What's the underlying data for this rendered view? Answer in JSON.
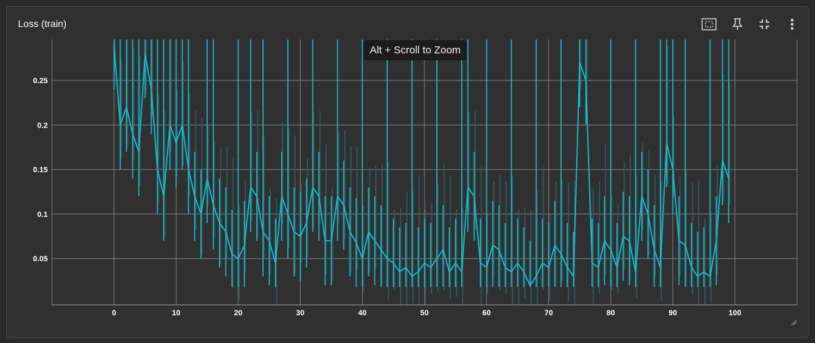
{
  "card": {
    "title": "Loss (train)"
  },
  "toolbar": {
    "items": [
      {
        "name": "fit-domain-icon"
      },
      {
        "name": "pin-icon"
      },
      {
        "name": "collapse-icon"
      },
      {
        "name": "more-vertical-icon"
      }
    ]
  },
  "tooltip": "Alt + Scroll to Zoom",
  "colors": {
    "smoothed": "#1ab8cc",
    "raw": "#2a5f66",
    "grid": "#7a7a7a",
    "text": "#ffffff"
  },
  "chart_data": {
    "type": "line",
    "title": "Loss (train)",
    "xlabel": "",
    "ylabel": "",
    "xlim": [
      -10,
      110
    ],
    "ylim": [
      -0.002,
      0.296
    ],
    "x_ticks": [
      0,
      10,
      20,
      30,
      40,
      50,
      60,
      70,
      80,
      90,
      100
    ],
    "y_ticks": [
      0.05,
      0.1,
      0.15,
      0.2,
      0.25
    ],
    "grid": true,
    "legend": "none",
    "series": [
      {
        "x": [
          0,
          1,
          2,
          3,
          4,
          5,
          6,
          7,
          8,
          9,
          10,
          11,
          12,
          13,
          14,
          15,
          16,
          17,
          18,
          19,
          20,
          21,
          22,
          23,
          24,
          25,
          26,
          27,
          28,
          29,
          30,
          31,
          32,
          33,
          34,
          35,
          36,
          37,
          38,
          39,
          40,
          41,
          42,
          43,
          44,
          45,
          46,
          47,
          48,
          49,
          50,
          51,
          52,
          53,
          54,
          55,
          56,
          57,
          58,
          59,
          60,
          61,
          62,
          63,
          64,
          65,
          66,
          67,
          68,
          69,
          70,
          71,
          72,
          73,
          74,
          75,
          76,
          77,
          78,
          79,
          80,
          81,
          82,
          83,
          84,
          85,
          86,
          87,
          88,
          89,
          90,
          91,
          92,
          93,
          94,
          95,
          96,
          97,
          98,
          99
        ],
        "y": [
          0.29,
          0.2,
          0.22,
          0.19,
          0.17,
          0.28,
          0.24,
          0.15,
          0.12,
          0.2,
          0.18,
          0.2,
          0.15,
          0.12,
          0.1,
          0.14,
          0.11,
          0.09,
          0.08,
          0.055,
          0.05,
          0.065,
          0.13,
          0.12,
          0.08,
          0.07,
          0.045,
          0.12,
          0.1,
          0.08,
          0.075,
          0.09,
          0.13,
          0.12,
          0.07,
          0.07,
          0.12,
          0.11,
          0.08,
          0.068,
          0.05,
          0.08,
          0.07,
          0.06,
          0.05,
          0.045,
          0.035,
          0.04,
          0.03,
          0.035,
          0.045,
          0.04,
          0.05,
          0.06,
          0.035,
          0.045,
          0.035,
          0.13,
          0.12,
          0.045,
          0.04,
          0.065,
          0.06,
          0.04,
          0.035,
          0.045,
          0.035,
          0.02,
          0.03,
          0.045,
          0.04,
          0.065,
          0.055,
          0.04,
          0.03,
          0.27,
          0.25,
          0.045,
          0.04,
          0.07,
          0.06,
          0.04,
          0.075,
          0.07,
          0.035,
          0.12,
          0.1,
          0.06,
          0.04,
          0.18,
          0.15,
          0.07,
          0.065,
          0.04,
          0.03,
          0.035,
          0.03,
          0.07,
          0.16,
          0.14
        ],
        "color": "#1ab8cc"
      }
    ]
  }
}
